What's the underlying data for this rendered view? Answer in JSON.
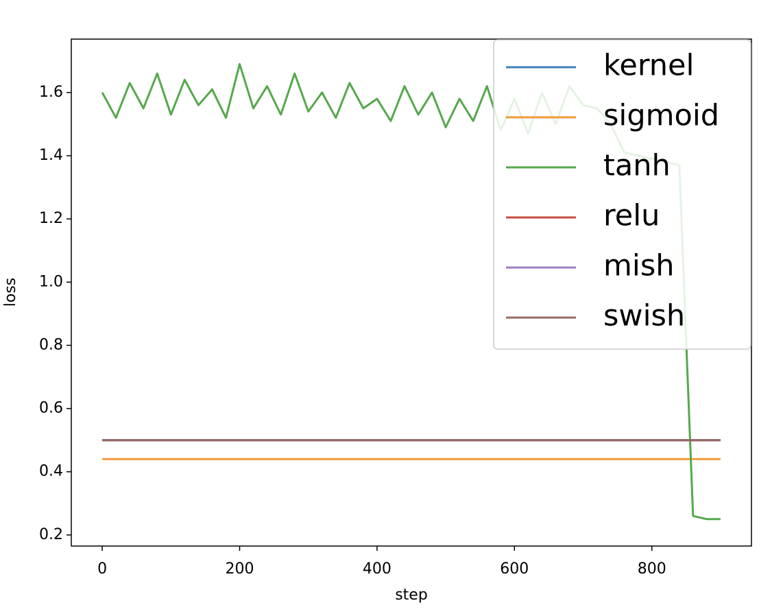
{
  "chart_data": {
    "type": "line",
    "xlabel": "step",
    "ylabel": "loss",
    "x": [
      0,
      20,
      40,
      60,
      80,
      100,
      120,
      140,
      160,
      180,
      200,
      220,
      240,
      260,
      280,
      300,
      320,
      340,
      360,
      380,
      400,
      420,
      440,
      460,
      480,
      500,
      520,
      540,
      560,
      580,
      600,
      620,
      640,
      660,
      680,
      700,
      720,
      740,
      760,
      780,
      800,
      820,
      840,
      860,
      880,
      900
    ],
    "series": [
      {
        "name": "kernel",
        "color": "#3f7fbd",
        "values": [
          0.5,
          0.5,
          0.5,
          0.5,
          0.5,
          0.5,
          0.5,
          0.5,
          0.5,
          0.5,
          0.5,
          0.5,
          0.5,
          0.5,
          0.5,
          0.5,
          0.5,
          0.5,
          0.5,
          0.5,
          0.5,
          0.5,
          0.5,
          0.5,
          0.5,
          0.5,
          0.5,
          0.5,
          0.5,
          0.5,
          0.5,
          0.5,
          0.5,
          0.5,
          0.5,
          0.5,
          0.5,
          0.5,
          0.5,
          0.5,
          0.5,
          0.5,
          0.5,
          0.5,
          0.5,
          0.5
        ]
      },
      {
        "name": "sigmoid",
        "color": "#f09a3a",
        "values": [
          0.44,
          0.44,
          0.44,
          0.44,
          0.44,
          0.44,
          0.44,
          0.44,
          0.44,
          0.44,
          0.44,
          0.44,
          0.44,
          0.44,
          0.44,
          0.44,
          0.44,
          0.44,
          0.44,
          0.44,
          0.44,
          0.44,
          0.44,
          0.44,
          0.44,
          0.44,
          0.44,
          0.44,
          0.44,
          0.44,
          0.44,
          0.44,
          0.44,
          0.44,
          0.44,
          0.44,
          0.44,
          0.44,
          0.44,
          0.44,
          0.44,
          0.44,
          0.44,
          0.44,
          0.44,
          0.44
        ]
      },
      {
        "name": "tanh",
        "color": "#55a84b",
        "values": [
          1.6,
          1.52,
          1.63,
          1.55,
          1.66,
          1.53,
          1.64,
          1.56,
          1.61,
          1.52,
          1.69,
          1.55,
          1.62,
          1.53,
          1.66,
          1.54,
          1.6,
          1.52,
          1.63,
          1.55,
          1.58,
          1.51,
          1.62,
          1.53,
          1.6,
          1.49,
          1.58,
          1.51,
          1.62,
          1.48,
          1.58,
          1.47,
          1.6,
          1.5,
          1.62,
          1.56,
          1.55,
          1.5,
          1.41,
          1.4,
          1.39,
          1.38,
          1.37,
          0.26,
          0.25,
          0.25
        ]
      },
      {
        "name": "relu",
        "color": "#c64d3f",
        "values": [
          0.5,
          0.5,
          0.5,
          0.5,
          0.5,
          0.5,
          0.5,
          0.5,
          0.5,
          0.5,
          0.5,
          0.5,
          0.5,
          0.5,
          0.5,
          0.5,
          0.5,
          0.5,
          0.5,
          0.5,
          0.5,
          0.5,
          0.5,
          0.5,
          0.5,
          0.5,
          0.5,
          0.5,
          0.5,
          0.5,
          0.5,
          0.5,
          0.5,
          0.5,
          0.5,
          0.5,
          0.5,
          0.5,
          0.5,
          0.5,
          0.5,
          0.5,
          0.5,
          0.5,
          0.5,
          0.5
        ]
      },
      {
        "name": "mish",
        "color": "#9c7fc6",
        "values": [
          0.5,
          0.5,
          0.5,
          0.5,
          0.5,
          0.5,
          0.5,
          0.5,
          0.5,
          0.5,
          0.5,
          0.5,
          0.5,
          0.5,
          0.5,
          0.5,
          0.5,
          0.5,
          0.5,
          0.5,
          0.5,
          0.5,
          0.5,
          0.5,
          0.5,
          0.5,
          0.5,
          0.5,
          0.5,
          0.5,
          0.5,
          0.5,
          0.5,
          0.5,
          0.5,
          0.5,
          0.5,
          0.5,
          0.5,
          0.5,
          0.5,
          0.5,
          0.5,
          0.5,
          0.5,
          0.5
        ]
      },
      {
        "name": "swish",
        "color": "#946a62",
        "values": [
          0.5,
          0.5,
          0.5,
          0.5,
          0.5,
          0.5,
          0.5,
          0.5,
          0.5,
          0.5,
          0.5,
          0.5,
          0.5,
          0.5,
          0.5,
          0.5,
          0.5,
          0.5,
          0.5,
          0.5,
          0.5,
          0.5,
          0.5,
          0.5,
          0.5,
          0.5,
          0.5,
          0.5,
          0.5,
          0.5,
          0.5,
          0.5,
          0.5,
          0.5,
          0.5,
          0.5,
          0.5,
          0.5,
          0.5,
          0.5,
          0.5,
          0.5,
          0.5,
          0.5,
          0.5,
          0.5
        ]
      }
    ],
    "xlim": [
      -45,
      945
    ],
    "xticks": [
      0,
      200,
      400,
      600,
      800
    ],
    "ylim": [
      0.165,
      1.769
    ],
    "yticks": [
      0.2,
      0.4,
      0.6,
      0.8,
      {
        "value": 1,
        "label": "1.0"
      },
      1.2,
      1.4,
      1.6
    ],
    "grid": false,
    "legend": "upper right"
  }
}
